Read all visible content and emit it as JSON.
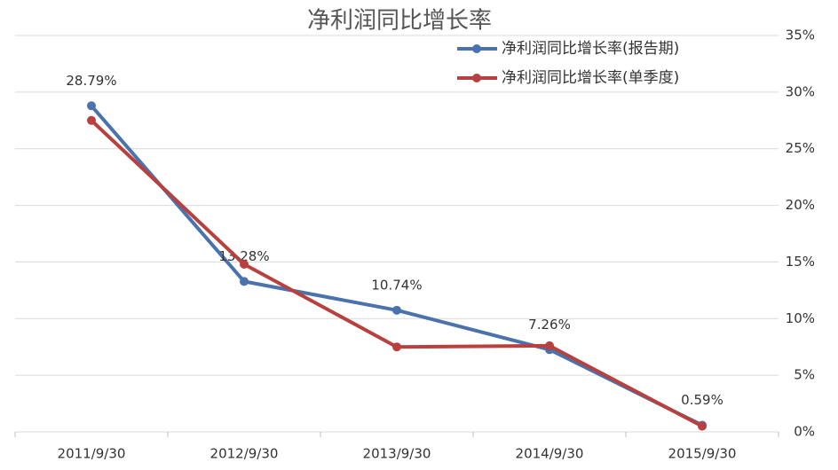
{
  "chart_data": {
    "type": "line",
    "title": "净利润同比增长率",
    "categories": [
      "2011/9/30",
      "2012/9/30",
      "2013/9/30",
      "2014/9/30",
      "2015/9/30"
    ],
    "series": [
      {
        "name": "净利润同比增长率(报告期)",
        "color": "#4a72ad",
        "values": [
          28.79,
          13.28,
          10.74,
          7.26,
          0.59
        ],
        "value_labels": [
          "28.79%",
          "13.28%",
          "10.74%",
          "7.26%",
          "0.59%"
        ]
      },
      {
        "name": "净利润同比增长率(单季度)",
        "color": "#b8403f",
        "values": [
          27.5,
          14.8,
          7.5,
          7.6,
          0.5
        ]
      }
    ],
    "ylim": [
      0,
      35
    ],
    "yticks": [
      {
        "value": 0,
        "label": "0%"
      },
      {
        "value": 5,
        "label": "5%"
      },
      {
        "value": 10,
        "label": "10%"
      },
      {
        "value": 15,
        "label": "15%"
      },
      {
        "value": 20,
        "label": "20%"
      },
      {
        "value": 25,
        "label": "25%"
      },
      {
        "value": 30,
        "label": "30%"
      },
      {
        "value": 35,
        "label": "35%"
      }
    ],
    "grid": true,
    "legend": "top-right"
  }
}
